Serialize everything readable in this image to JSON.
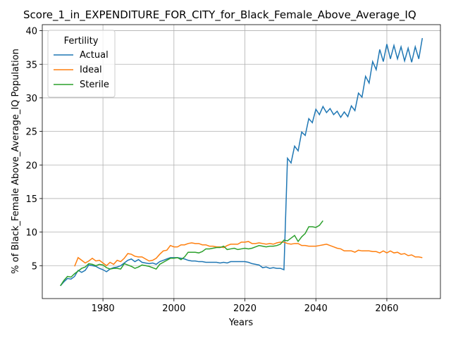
{
  "chart_data": {
    "type": "line",
    "title": "Score_1_in_EXPENDITURE_FOR_CITY_for_Black_Female_Above_Average_IQ",
    "x_label": "Years",
    "y_label": "% of Black_Female Above_Average_IQ Population",
    "legend_title": "Fertility",
    "legend": "upper left",
    "grid": true,
    "xlim": [
      1962.9,
      2075.1
    ],
    "ylim": [
      0.1,
      40.9
    ],
    "xticks": [
      1980,
      2000,
      2020,
      2040,
      2060
    ],
    "yticks": [
      5,
      10,
      15,
      20,
      25,
      30,
      35,
      40
    ],
    "x": [
      1968,
      1969,
      1970,
      1971,
      1972,
      1973,
      1974,
      1975,
      1976,
      1977,
      1978,
      1979,
      1980,
      1981,
      1982,
      1983,
      1984,
      1985,
      1986,
      1987,
      1988,
      1989,
      1990,
      1991,
      1992,
      1993,
      1994,
      1995,
      1996,
      1997,
      1998,
      1999,
      2000,
      2001,
      2002,
      2003,
      2004,
      2005,
      2006,
      2007,
      2008,
      2009,
      2010,
      2011,
      2012,
      2013,
      2014,
      2015,
      2016,
      2017,
      2018,
      2019,
      2020,
      2021,
      2022,
      2023,
      2024,
      2025,
      2026,
      2027,
      2028,
      2029,
      2030,
      2031,
      2032,
      2033,
      2034,
      2035,
      2036,
      2037,
      2038,
      2039,
      2040,
      2041,
      2042,
      2043,
      2044,
      2045,
      2046,
      2047,
      2048,
      2049,
      2050,
      2051,
      2052,
      2053,
      2054,
      2055,
      2056,
      2057,
      2058,
      2059,
      2060,
      2061,
      2062,
      2063,
      2064,
      2065,
      2066,
      2067,
      2068,
      2069,
      2070
    ],
    "series": [
      {
        "name": "Actual",
        "color": "#1f77b4",
        "values": [
          2.0,
          2.6,
          3.1,
          3.0,
          3.4,
          4.3,
          4.0,
          4.3,
          5.1,
          5.0,
          4.9,
          4.6,
          4.4,
          4.1,
          4.5,
          4.7,
          4.8,
          5.0,
          5.4,
          5.8,
          6.0,
          5.6,
          5.9,
          5.5,
          5.4,
          5.3,
          5.4,
          5.2,
          5.6,
          5.8,
          6.0,
          6.2,
          6.2,
          6.2,
          6.1,
          6.0,
          5.8,
          5.7,
          5.7,
          5.6,
          5.6,
          5.5,
          5.5,
          5.5,
          5.5,
          5.4,
          5.5,
          5.4,
          5.6,
          5.6,
          5.6,
          5.6,
          5.6,
          5.5,
          5.3,
          5.2,
          5.1,
          4.7,
          4.8,
          4.6,
          4.7,
          4.6,
          4.6,
          4.4,
          21.0,
          20.3,
          22.8,
          22.1,
          24.9,
          24.4,
          26.9,
          26.3,
          28.3,
          27.5,
          28.7,
          27.8,
          28.4,
          27.5,
          28.0,
          27.1,
          27.9,
          27.2,
          28.8,
          28.1,
          30.7,
          30.1,
          33.2,
          32.2,
          35.4,
          34.2,
          37.2,
          35.4,
          38.0,
          35.8,
          37.8,
          35.8,
          37.6,
          35.5,
          37.4,
          35.3,
          37.6,
          35.8,
          38.9
        ]
      },
      {
        "name": "Ideal",
        "color": "#ff7f0e",
        "values": [
          null,
          null,
          null,
          null,
          4.9,
          6.2,
          5.8,
          5.4,
          5.7,
          6.1,
          5.7,
          5.8,
          5.4,
          5.0,
          5.5,
          5.2,
          5.8,
          5.6,
          6.1,
          6.8,
          6.7,
          6.4,
          6.3,
          6.3,
          6.0,
          5.7,
          5.8,
          6.1,
          6.7,
          7.2,
          7.3,
          8.0,
          7.8,
          7.8,
          8.1,
          8.1,
          8.3,
          8.4,
          8.3,
          8.3,
          8.1,
          8.1,
          7.9,
          7.9,
          7.8,
          7.8,
          7.7,
          8.0,
          8.2,
          8.2,
          8.2,
          8.5,
          8.5,
          8.6,
          8.3,
          8.3,
          8.4,
          8.3,
          8.2,
          8.3,
          8.2,
          8.4,
          8.5,
          8.5,
          8.3,
          8.2,
          8.3,
          8.3,
          8.0,
          8.0,
          7.9,
          7.9,
          7.9,
          8.0,
          8.1,
          8.2,
          8.0,
          7.8,
          7.6,
          7.5,
          7.2,
          7.2,
          7.2,
          7.0,
          7.3,
          7.2,
          7.2,
          7.2,
          7.1,
          7.1,
          6.9,
          7.2,
          6.9,
          7.2,
          6.9,
          7.0,
          6.7,
          6.8,
          6.5,
          6.6,
          6.3,
          6.3,
          6.2
        ]
      },
      {
        "name": "Sterile",
        "color": "#2ca02c",
        "values": [
          2.0,
          2.8,
          3.4,
          3.3,
          3.8,
          4.2,
          4.6,
          4.8,
          5.3,
          5.2,
          5.0,
          5.2,
          5.1,
          4.7,
          4.5,
          4.6,
          4.6,
          4.5,
          5.3,
          5.1,
          4.9,
          4.6,
          4.8,
          5.1,
          5.0,
          4.9,
          4.7,
          4.5,
          5.2,
          5.5,
          5.8,
          6.1,
          6.1,
          6.2,
          5.9,
          6.3,
          7.0,
          7.0,
          7.0,
          6.9,
          7.1,
          7.5,
          7.5,
          7.6,
          7.7,
          7.7,
          7.9,
          7.4,
          7.5,
          7.6,
          7.4,
          7.5,
          7.6,
          7.5,
          7.6,
          7.8,
          8.0,
          7.9,
          7.8,
          7.9,
          7.9,
          8.0,
          8.2,
          8.8,
          8.7,
          9.1,
          9.5,
          8.6,
          9.3,
          9.8,
          10.8,
          10.8,
          10.7,
          11.0,
          11.7,
          null,
          null,
          null,
          null,
          null,
          null,
          null,
          null,
          null,
          null,
          null,
          null,
          null,
          null,
          null,
          null,
          null,
          null,
          null,
          null,
          null,
          null,
          null,
          null,
          null,
          null,
          null,
          null
        ]
      }
    ]
  }
}
